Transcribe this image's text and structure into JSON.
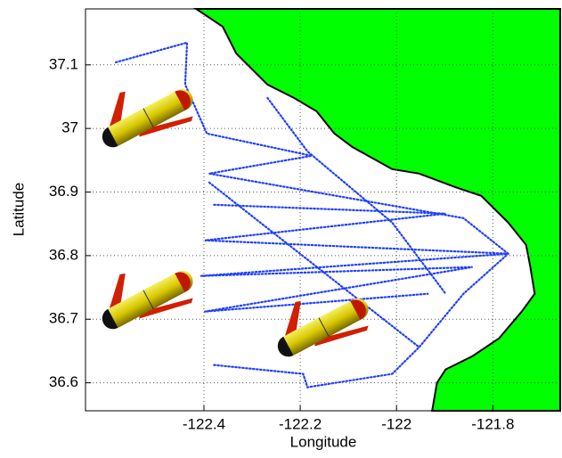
{
  "chart_data": {
    "type": "map",
    "xlabel": "Longitude",
    "ylabel": "Latitude",
    "xlim": [
      -122.646,
      -121.66
    ],
    "ylim": [
      36.556,
      37.188
    ],
    "xticks": [
      -122.4,
      -122.2,
      -122,
      -121.8
    ],
    "yticks": [
      36.6,
      36.7,
      36.8,
      36.9,
      37,
      37.1
    ],
    "grid": true,
    "land": {
      "color": "#00ff00",
      "lon": [
        -122.416,
        -122.361,
        -122.333,
        -122.268,
        -122.213,
        -122.166,
        -122.129,
        -122.092,
        -122.009,
        -121.953,
        -121.879,
        -121.824,
        -121.768,
        -121.731,
        -121.722,
        -121.713,
        -121.74,
        -121.787,
        -121.842,
        -121.898,
        -121.916,
        -121.926,
        -121.66,
        -121.66
      ],
      "lat": [
        37.188,
        37.16,
        37.118,
        37.069,
        37.048,
        37.027,
        36.992,
        36.971,
        36.936,
        36.929,
        36.908,
        36.894,
        36.852,
        36.817,
        36.782,
        36.74,
        36.712,
        36.67,
        36.642,
        36.621,
        36.6,
        36.556,
        36.556,
        37.188
      ]
    },
    "series": [
      {
        "color": "#1f3fff",
        "lon": [
          -122.583,
          -122.435,
          -122.439,
          -122.394,
          -122.176,
          -122.389,
          -121.861,
          -121.768
        ],
        "lat": [
          37.104,
          37.135,
          37.069,
          36.992,
          36.957,
          36.929,
          36.859,
          36.803
        ]
      },
      {
        "color": "#1f3fff",
        "lon": [
          -122.379,
          -121.898,
          -122.398,
          -121.768,
          -122.407,
          -121.842,
          -122.398,
          -121.935
        ],
        "lat": [
          36.88,
          36.866,
          36.824,
          36.803,
          36.768,
          36.782,
          36.712,
          36.74
        ]
      },
      {
        "color": "#1f3fff",
        "lon": [
          -122.379,
          -122.194,
          -122.185,
          -122.009,
          -121.953,
          -121.861,
          -121.768
        ],
        "lat": [
          36.628,
          36.614,
          36.593,
          36.614,
          36.656,
          36.74,
          36.803
        ]
      },
      {
        "color": "#1f3fff",
        "lon": [
          -122.389,
          -121.953
        ],
        "lat": [
          36.915,
          36.656
        ]
      },
      {
        "color": "#1f3fff",
        "lon": [
          -122.268,
          -122.185,
          -122.009,
          -121.898
        ],
        "lat": [
          37.048,
          36.964,
          36.852,
          36.74
        ]
      }
    ]
  }
}
